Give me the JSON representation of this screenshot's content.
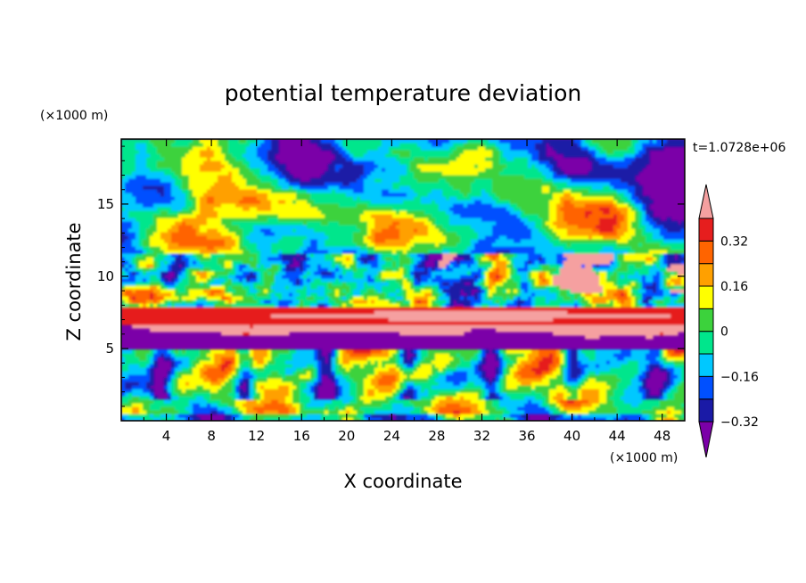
{
  "chart_data": {
    "type": "heatmap",
    "title": "potential temperature deviation",
    "xlabel": "X coordinate",
    "ylabel": "Z coordinate",
    "x_unit": "(×1000 m)",
    "y_unit": "(×1000 m)",
    "time_label": "t=1.0728e+06",
    "xlim": [
      0,
      50
    ],
    "ylim": [
      0,
      19.5
    ],
    "x_ticks": [
      "4",
      "8",
      "12",
      "16",
      "20",
      "24",
      "28",
      "32",
      "36",
      "40",
      "44",
      "48"
    ],
    "y_ticks": [
      "5",
      "10",
      "15"
    ],
    "colorbar": {
      "levels": [
        -0.4,
        -0.32,
        -0.24,
        -0.16,
        -0.08,
        0,
        0.08,
        0.16,
        0.24,
        0.32,
        0.4
      ],
      "labels": [
        "0.32",
        "0.16",
        "0",
        "−0.16",
        "−0.32"
      ],
      "colors": [
        "#7b00a8",
        "#1a1aa6",
        "#0050ff",
        "#00c8ff",
        "#00e68c",
        "#3cd23c",
        "#ffff00",
        "#ffa000",
        "#ff6400",
        "#e61e1e",
        "#f5a0a0"
      ]
    }
  }
}
